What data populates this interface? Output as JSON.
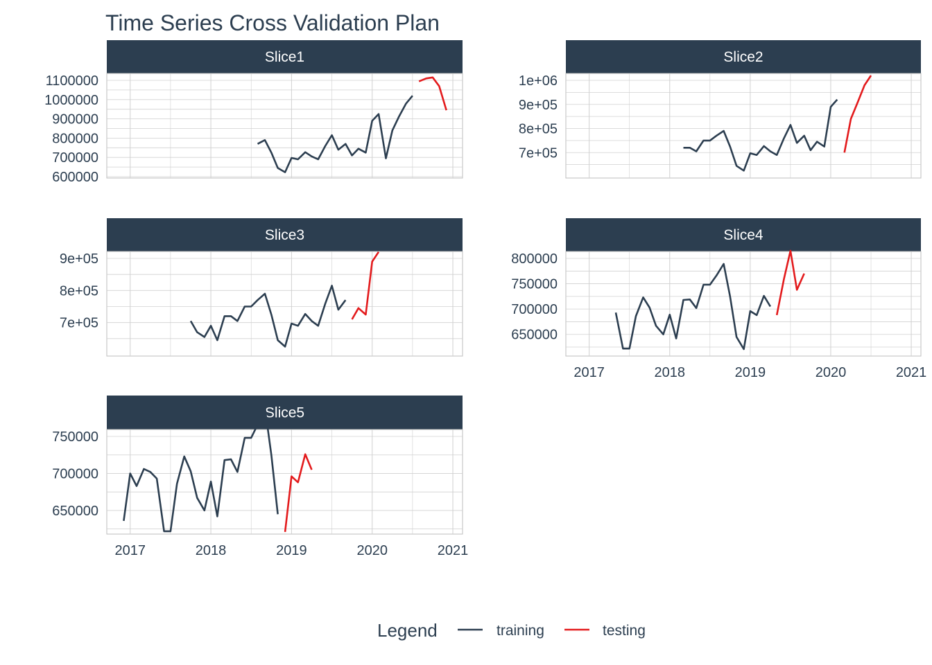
{
  "chart_data": {
    "type": "line",
    "title": "Time Series Cross Validation Plan",
    "colors": {
      "training": "#2c3e50",
      "testing": "#e31a1c",
      "strip": "#2c3e50",
      "grid": "#d0d0d0"
    },
    "x_ticks": [
      "2017",
      "2018",
      "2019",
      "2020",
      "2021"
    ],
    "legend": {
      "title": "Legend",
      "items": [
        {
          "key": "training",
          "label": "training"
        },
        {
          "key": "testing",
          "label": "testing"
        }
      ],
      "position": "bottom"
    },
    "panels": [
      {
        "name": "Slice1",
        "y_ticks": [
          "600000",
          "700000",
          "800000",
          "900000",
          "1000000",
          "1100000"
        ],
        "y_tick_values": [
          600000,
          700000,
          800000,
          900000,
          1000000,
          1100000
        ],
        "ylim": [
          600000,
          1100000
        ],
        "show_x_axis": false,
        "training": [
          [
            2018.58,
            770000
          ],
          [
            2018.67,
            790000
          ],
          [
            2018.75,
            725000
          ],
          [
            2018.83,
            645000
          ],
          [
            2018.92,
            623000
          ],
          [
            2019.0,
            697000
          ],
          [
            2019.08,
            690000
          ],
          [
            2019.17,
            727000
          ],
          [
            2019.25,
            705000
          ],
          [
            2019.33,
            690000
          ],
          [
            2019.42,
            760000
          ],
          [
            2019.5,
            815000
          ],
          [
            2019.58,
            740000
          ],
          [
            2019.67,
            770000
          ],
          [
            2019.75,
            710000
          ],
          [
            2019.83,
            745000
          ],
          [
            2019.92,
            725000
          ],
          [
            2020.0,
            890000
          ],
          [
            2020.08,
            925000
          ],
          [
            2020.17,
            695000
          ],
          [
            2020.25,
            840000
          ],
          [
            2020.33,
            910000
          ],
          [
            2020.42,
            980000
          ],
          [
            2020.5,
            1020000
          ]
        ],
        "testing": [
          [
            2020.58,
            1095000
          ],
          [
            2020.67,
            1110000
          ],
          [
            2020.75,
            1115000
          ],
          [
            2020.83,
            1070000
          ],
          [
            2020.92,
            945000
          ]
        ]
      },
      {
        "name": "Slice2",
        "y_ticks": [
          "7e+05",
          "8e+05",
          "9e+05",
          "1e+06"
        ],
        "y_tick_values": [
          700000,
          800000,
          900000,
          1000000
        ],
        "ylim": [
          600000,
          1000000
        ],
        "show_x_axis": false,
        "training": [
          [
            2018.17,
            720000
          ],
          [
            2018.25,
            720000
          ],
          [
            2018.33,
            705000
          ],
          [
            2018.42,
            750000
          ],
          [
            2018.5,
            750000
          ],
          [
            2018.58,
            770000
          ],
          [
            2018.67,
            790000
          ],
          [
            2018.75,
            725000
          ],
          [
            2018.83,
            645000
          ],
          [
            2018.92,
            625000
          ],
          [
            2019.0,
            697000
          ],
          [
            2019.08,
            690000
          ],
          [
            2019.17,
            727000
          ],
          [
            2019.25,
            705000
          ],
          [
            2019.33,
            690000
          ],
          [
            2019.42,
            760000
          ],
          [
            2019.5,
            815000
          ],
          [
            2019.58,
            740000
          ],
          [
            2019.67,
            770000
          ],
          [
            2019.75,
            710000
          ],
          [
            2019.83,
            745000
          ],
          [
            2019.92,
            725000
          ],
          [
            2020.0,
            890000
          ],
          [
            2020.08,
            920000
          ]
        ],
        "testing": [
          [
            2020.17,
            700000
          ],
          [
            2020.25,
            840000
          ],
          [
            2020.33,
            905000
          ],
          [
            2020.42,
            980000
          ],
          [
            2020.5,
            1020000
          ]
        ]
      },
      {
        "name": "Slice3",
        "y_ticks": [
          "7e+05",
          "8e+05",
          "9e+05"
        ],
        "y_tick_values": [
          700000,
          800000,
          900000
        ],
        "ylim": [
          600000,
          900000
        ],
        "show_x_axis": false,
        "training": [
          [
            2017.75,
            705000
          ],
          [
            2017.83,
            670000
          ],
          [
            2017.92,
            655000
          ],
          [
            2018.0,
            690000
          ],
          [
            2018.08,
            645000
          ],
          [
            2018.17,
            720000
          ],
          [
            2018.25,
            720000
          ],
          [
            2018.33,
            705000
          ],
          [
            2018.42,
            750000
          ],
          [
            2018.5,
            750000
          ],
          [
            2018.58,
            770000
          ],
          [
            2018.67,
            790000
          ],
          [
            2018.75,
            725000
          ],
          [
            2018.83,
            645000
          ],
          [
            2018.92,
            625000
          ],
          [
            2019.0,
            697000
          ],
          [
            2019.08,
            690000
          ],
          [
            2019.17,
            727000
          ],
          [
            2019.25,
            705000
          ],
          [
            2019.33,
            690000
          ],
          [
            2019.42,
            760000
          ],
          [
            2019.5,
            815000
          ],
          [
            2019.58,
            740000
          ],
          [
            2019.67,
            770000
          ]
        ],
        "testing": [
          [
            2019.75,
            710000
          ],
          [
            2019.83,
            745000
          ],
          [
            2019.92,
            725000
          ],
          [
            2020.0,
            890000
          ],
          [
            2020.08,
            920000
          ]
        ]
      },
      {
        "name": "Slice4",
        "y_ticks": [
          "650000",
          "700000",
          "750000",
          "800000"
        ],
        "y_tick_values": [
          650000,
          700000,
          750000,
          800000
        ],
        "ylim": [
          610000,
          800000
        ],
        "show_x_axis": true,
        "training": [
          [
            2017.33,
            693000
          ],
          [
            2017.42,
            622000
          ],
          [
            2017.5,
            622000
          ],
          [
            2017.58,
            686000
          ],
          [
            2017.67,
            723000
          ],
          [
            2017.75,
            703000
          ],
          [
            2017.83,
            667000
          ],
          [
            2017.92,
            650000
          ],
          [
            2018.0,
            689000
          ],
          [
            2018.08,
            642000
          ],
          [
            2018.17,
            718000
          ],
          [
            2018.25,
            719000
          ],
          [
            2018.33,
            702000
          ],
          [
            2018.42,
            748000
          ],
          [
            2018.5,
            748000
          ],
          [
            2018.58,
            766000
          ],
          [
            2018.67,
            789000
          ],
          [
            2018.75,
            725000
          ],
          [
            2018.83,
            645000
          ],
          [
            2018.92,
            621000
          ],
          [
            2019.0,
            696000
          ],
          [
            2019.08,
            688000
          ],
          [
            2019.17,
            726000
          ],
          [
            2019.25,
            705000
          ]
        ],
        "testing": [
          [
            2019.33,
            688000
          ],
          [
            2019.42,
            760000
          ],
          [
            2019.5,
            815000
          ],
          [
            2019.58,
            738000
          ],
          [
            2019.67,
            770000
          ]
        ]
      },
      {
        "name": "Slice5",
        "y_ticks": [
          "650000",
          "700000",
          "750000"
        ],
        "y_tick_values": [
          650000,
          700000,
          750000
        ],
        "ylim": [
          620000,
          750000
        ],
        "show_x_axis": true,
        "training": [
          [
            2016.92,
            636000
          ],
          [
            2017.0,
            700000
          ],
          [
            2017.08,
            683000
          ],
          [
            2017.17,
            706000
          ],
          [
            2017.25,
            702000
          ],
          [
            2017.33,
            693000
          ],
          [
            2017.42,
            622000
          ],
          [
            2017.5,
            622000
          ],
          [
            2017.58,
            686000
          ],
          [
            2017.67,
            723000
          ],
          [
            2017.75,
            703000
          ],
          [
            2017.83,
            667000
          ],
          [
            2017.92,
            650000
          ],
          [
            2018.0,
            689000
          ],
          [
            2018.08,
            642000
          ],
          [
            2018.17,
            718000
          ],
          [
            2018.25,
            719000
          ],
          [
            2018.33,
            702000
          ],
          [
            2018.42,
            748000
          ],
          [
            2018.5,
            748000
          ],
          [
            2018.58,
            766000
          ],
          [
            2018.67,
            789000
          ],
          [
            2018.75,
            725000
          ],
          [
            2018.83,
            645000
          ]
        ],
        "testing": [
          [
            2018.92,
            621000
          ],
          [
            2019.0,
            696000
          ],
          [
            2019.08,
            688000
          ],
          [
            2019.17,
            726000
          ],
          [
            2019.25,
            705000
          ]
        ]
      }
    ]
  }
}
